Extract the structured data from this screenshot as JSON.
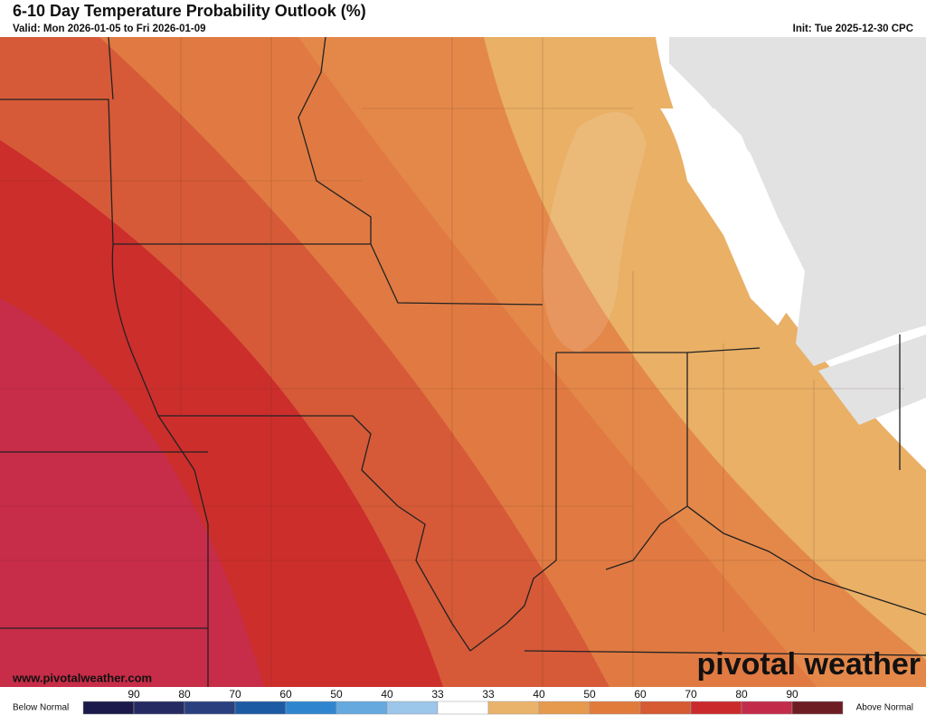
{
  "header": {
    "title": "6-10 Day Temperature Probability Outlook (%)",
    "valid": "Valid: Mon 2026-01-05 to Fri 2026-01-09",
    "init": "Init: Tue 2025-12-30 CPC"
  },
  "map": {
    "website": "www.pivotalweather.com",
    "logo": "pivotal weather"
  },
  "legend": {
    "below_label": "Below Normal",
    "above_label": "Above Normal",
    "labels": [
      90,
      80,
      70,
      60,
      50,
      40,
      33,
      33,
      40,
      50,
      60,
      70,
      80,
      90
    ],
    "colors": [
      "#1b1a4b",
      "#252b62",
      "#2a3f7e",
      "#1c5aa4",
      "#2f86cf",
      "#65a9df",
      "#9cc6ea",
      "#ffffff",
      "#eab36b",
      "#e69a4d",
      "#e17b3c",
      "#d65a32",
      "#cb2a2c",
      "#c22c4a",
      "#6e1c24"
    ]
  }
}
